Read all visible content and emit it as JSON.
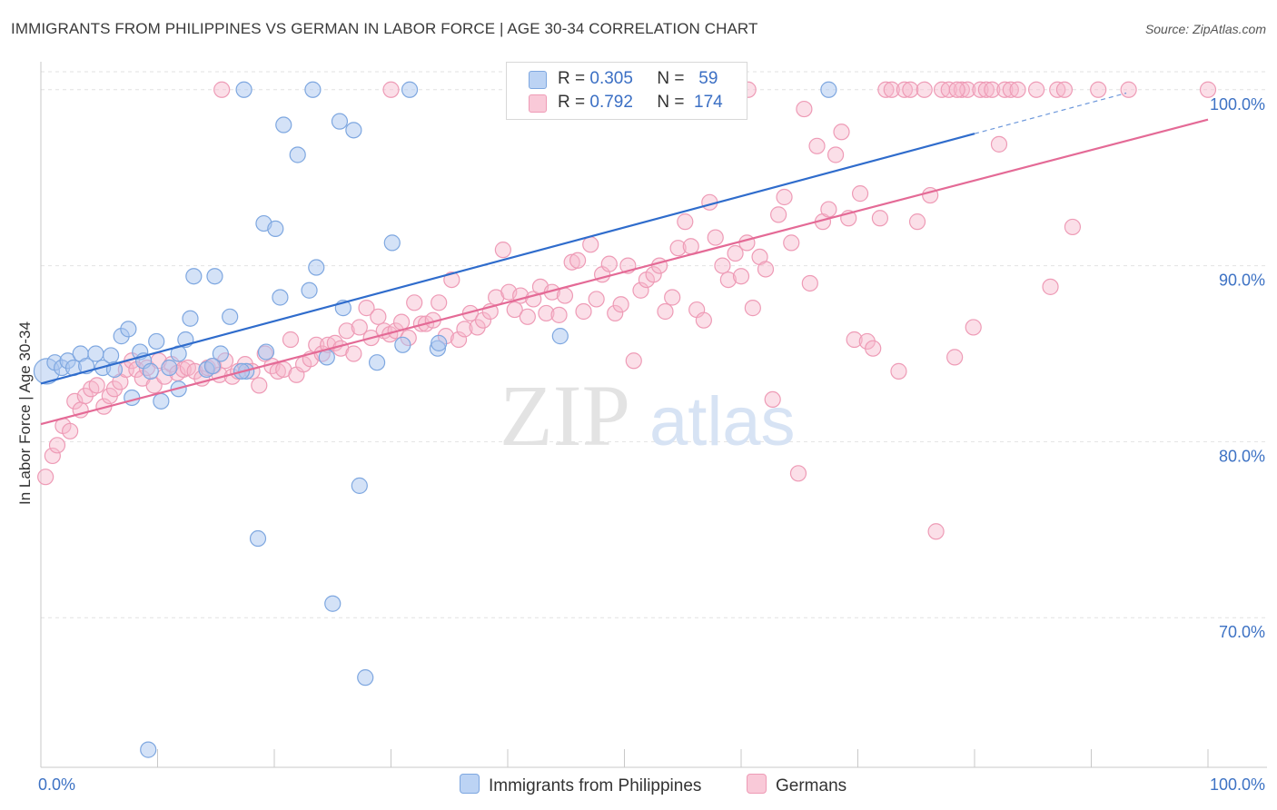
{
  "title": "IMMIGRANTS FROM PHILIPPINES VS GERMAN IN LABOR FORCE | AGE 30-34 CORRELATION CHART",
  "source": "Source: ZipAtlas.com",
  "watermark": {
    "zip": "ZIP",
    "atlas": "atlas"
  },
  "colors": {
    "blue_fill": "#a9c6f0",
    "blue_stroke": "#7ea7e0",
    "blue_line": "#2f6ccc",
    "pink_fill": "#f6b7cb",
    "pink_stroke": "#ee9bb6",
    "pink_line": "#e46a96",
    "axis_label": "#3d72c4",
    "grid": "#e2e2e2"
  },
  "legend": {
    "rows": [
      {
        "r_label": "R =",
        "r_value": "0.305",
        "n_label": "N =",
        "n_value": "59"
      },
      {
        "r_label": "R =",
        "r_value": "0.792",
        "n_label": "N =",
        "n_value": "174"
      }
    ]
  },
  "bottom_legend": [
    "Immigrants from Philippines",
    "Germans"
  ],
  "chart_data": {
    "type": "scatter",
    "xlabel": "",
    "ylabel": "In Labor Force | Age 30-34",
    "xlim": [
      0,
      100
    ],
    "ylim": [
      61.5,
      102
    ],
    "x_tick_labels": [
      {
        "value": 0,
        "label": "0.0%"
      },
      {
        "value": 100,
        "label": "100.0%"
      }
    ],
    "y_tick_labels": [
      {
        "value": 70,
        "label": "70.0%"
      },
      {
        "value": 80,
        "label": "80.0%"
      },
      {
        "value": 90,
        "label": "90.0%"
      },
      {
        "value": 100,
        "label": "100.0%"
      }
    ],
    "grid": true,
    "series": [
      {
        "name": "Immigrants from Philippines",
        "color": "#a9c6f0",
        "trend": {
          "x": [
            0,
            80
          ],
          "y": [
            83.3,
            97.5
          ],
          "dash_to": [
            93,
            100
          ]
        },
        "points": [
          [
            0.5,
            84.0
          ],
          [
            1.2,
            84.5
          ],
          [
            1.8,
            84.2
          ],
          [
            2.3,
            84.6
          ],
          [
            2.8,
            84.2
          ],
          [
            3.4,
            85.0
          ],
          [
            3.9,
            84.3
          ],
          [
            4.7,
            85.0
          ],
          [
            5.3,
            84.2
          ],
          [
            6.0,
            84.9
          ],
          [
            6.3,
            84.1
          ],
          [
            6.9,
            86.0
          ],
          [
            7.5,
            86.4
          ],
          [
            7.8,
            82.5
          ],
          [
            8.5,
            85.1
          ],
          [
            8.8,
            84.6
          ],
          [
            9.4,
            84.0
          ],
          [
            9.9,
            85.7
          ],
          [
            10.3,
            82.3
          ],
          [
            11.0,
            84.2
          ],
          [
            11.8,
            83.0
          ],
          [
            12.4,
            85.8
          ],
          [
            12.8,
            87.0
          ],
          [
            13.1,
            89.4
          ],
          [
            14.2,
            84.1
          ],
          [
            14.9,
            89.4
          ],
          [
            15.4,
            85.0
          ],
          [
            16.2,
            87.1
          ],
          [
            17.6,
            84.0
          ],
          [
            17.4,
            100.0
          ],
          [
            18.6,
            74.5
          ],
          [
            19.3,
            85.1
          ],
          [
            19.1,
            92.4
          ],
          [
            20.1,
            92.1
          ],
          [
            20.5,
            88.2
          ],
          [
            20.8,
            98.0
          ],
          [
            22.0,
            96.3
          ],
          [
            23.0,
            88.6
          ],
          [
            23.3,
            100.0
          ],
          [
            23.6,
            89.9
          ],
          [
            24.5,
            84.8
          ],
          [
            25.0,
            70.8
          ],
          [
            25.6,
            98.2
          ],
          [
            25.9,
            87.6
          ],
          [
            26.8,
            97.7
          ],
          [
            27.3,
            77.5
          ],
          [
            27.8,
            66.6
          ],
          [
            28.8,
            84.5
          ],
          [
            30.1,
            91.3
          ],
          [
            31.0,
            85.5
          ],
          [
            31.6,
            100.0
          ],
          [
            34.0,
            85.3
          ],
          [
            34.1,
            85.6
          ],
          [
            44.5,
            86.0
          ],
          [
            67.5,
            100.0
          ],
          [
            9.2,
            62.5
          ],
          [
            11.8,
            85.0
          ],
          [
            14.7,
            84.3
          ],
          [
            17.2,
            84.0
          ]
        ]
      },
      {
        "name": "Germans",
        "color": "#f6b7cb",
        "trend": {
          "x": [
            0,
            100
          ],
          "y": [
            81.0,
            98.3
          ]
        },
        "points": [
          [
            0.4,
            78.0
          ],
          [
            1.0,
            79.2
          ],
          [
            1.4,
            79.8
          ],
          [
            1.9,
            80.9
          ],
          [
            2.5,
            80.6
          ],
          [
            2.9,
            82.3
          ],
          [
            3.4,
            81.8
          ],
          [
            3.8,
            82.6
          ],
          [
            4.3,
            83.0
          ],
          [
            4.8,
            83.2
          ],
          [
            5.4,
            82.0
          ],
          [
            5.9,
            82.6
          ],
          [
            6.3,
            83.0
          ],
          [
            6.8,
            83.4
          ],
          [
            7.3,
            84.1
          ],
          [
            7.8,
            84.6
          ],
          [
            8.2,
            84.1
          ],
          [
            8.7,
            83.6
          ],
          [
            9.1,
            84.2
          ],
          [
            9.7,
            83.2
          ],
          [
            10.1,
            84.6
          ],
          [
            10.6,
            83.7
          ],
          [
            11.2,
            84.4
          ],
          [
            11.7,
            83.9
          ],
          [
            12.2,
            84.1
          ],
          [
            12.6,
            84.2
          ],
          [
            13.2,
            84.0
          ],
          [
            13.8,
            83.6
          ],
          [
            14.3,
            84.2
          ],
          [
            14.8,
            84.3
          ],
          [
            15.3,
            83.8
          ],
          [
            15.8,
            84.6
          ],
          [
            16.4,
            83.7
          ],
          [
            16.9,
            84.0
          ],
          [
            17.5,
            84.4
          ],
          [
            18.1,
            84.0
          ],
          [
            18.7,
            83.2
          ],
          [
            19.2,
            85.0
          ],
          [
            19.8,
            84.3
          ],
          [
            20.3,
            84.0
          ],
          [
            20.8,
            84.1
          ],
          [
            21.4,
            85.8
          ],
          [
            21.9,
            83.8
          ],
          [
            22.5,
            84.4
          ],
          [
            23.1,
            84.7
          ],
          [
            23.6,
            85.5
          ],
          [
            24.1,
            85.0
          ],
          [
            24.6,
            85.5
          ],
          [
            25.2,
            85.6
          ],
          [
            25.7,
            85.3
          ],
          [
            26.2,
            86.3
          ],
          [
            26.8,
            85.0
          ],
          [
            27.3,
            86.5
          ],
          [
            27.9,
            87.6
          ],
          [
            28.3,
            85.9
          ],
          [
            28.9,
            87.1
          ],
          [
            29.4,
            86.3
          ],
          [
            29.9,
            86.1
          ],
          [
            30.4,
            86.3
          ],
          [
            30.9,
            86.8
          ],
          [
            31.5,
            85.9
          ],
          [
            32.0,
            87.9
          ],
          [
            32.6,
            86.7
          ],
          [
            33.0,
            86.7
          ],
          [
            33.6,
            86.9
          ],
          [
            34.1,
            87.9
          ],
          [
            34.7,
            86.0
          ],
          [
            35.2,
            89.2
          ],
          [
            35.8,
            85.8
          ],
          [
            36.3,
            86.4
          ],
          [
            36.8,
            87.3
          ],
          [
            37.4,
            86.5
          ],
          [
            37.9,
            86.9
          ],
          [
            38.5,
            87.4
          ],
          [
            39.0,
            88.2
          ],
          [
            39.6,
            90.9
          ],
          [
            40.1,
            88.5
          ],
          [
            40.6,
            87.5
          ],
          [
            41.1,
            88.3
          ],
          [
            41.7,
            87.1
          ],
          [
            42.2,
            88.1
          ],
          [
            42.8,
            88.8
          ],
          [
            43.3,
            87.3
          ],
          [
            43.8,
            88.5
          ],
          [
            44.4,
            87.2
          ],
          [
            44.9,
            88.3
          ],
          [
            45.5,
            90.2
          ],
          [
            46.0,
            90.3
          ],
          [
            46.5,
            87.4
          ],
          [
            47.1,
            91.2
          ],
          [
            47.6,
            88.1
          ],
          [
            48.1,
            89.5
          ],
          [
            48.7,
            90.1
          ],
          [
            49.2,
            87.3
          ],
          [
            49.7,
            87.8
          ],
          [
            50.3,
            90.0
          ],
          [
            50.8,
            84.6
          ],
          [
            51.4,
            88.6
          ],
          [
            51.9,
            89.2
          ],
          [
            52.5,
            89.5
          ],
          [
            53.0,
            90.0
          ],
          [
            53.5,
            87.4
          ],
          [
            54.1,
            88.2
          ],
          [
            54.6,
            91.0
          ],
          [
            55.2,
            92.5
          ],
          [
            55.7,
            91.1
          ],
          [
            56.2,
            87.5
          ],
          [
            56.8,
            86.9
          ],
          [
            57.3,
            93.6
          ],
          [
            57.8,
            91.6
          ],
          [
            58.4,
            90.0
          ],
          [
            58.9,
            89.2
          ],
          [
            59.5,
            90.7
          ],
          [
            60.0,
            89.4
          ],
          [
            60.5,
            91.3
          ],
          [
            61.0,
            87.6
          ],
          [
            61.6,
            90.5
          ],
          [
            62.1,
            89.8
          ],
          [
            62.7,
            82.4
          ],
          [
            63.2,
            92.9
          ],
          [
            63.7,
            93.9
          ],
          [
            64.3,
            91.3
          ],
          [
            64.9,
            78.2
          ],
          [
            65.4,
            98.9
          ],
          [
            65.9,
            89.0
          ],
          [
            66.5,
            96.8
          ],
          [
            67.0,
            92.5
          ],
          [
            67.5,
            93.2
          ],
          [
            68.1,
            96.3
          ],
          [
            68.6,
            97.6
          ],
          [
            69.2,
            92.7
          ],
          [
            69.7,
            85.8
          ],
          [
            70.2,
            94.1
          ],
          [
            70.8,
            85.7
          ],
          [
            71.3,
            85.3
          ],
          [
            71.9,
            92.7
          ],
          [
            72.4,
            100.0
          ],
          [
            72.9,
            100.0
          ],
          [
            73.5,
            84.0
          ],
          [
            74.0,
            100.0
          ],
          [
            74.5,
            100.0
          ],
          [
            75.1,
            92.5
          ],
          [
            75.7,
            100.0
          ],
          [
            76.2,
            94.0
          ],
          [
            76.7,
            74.9
          ],
          [
            77.2,
            100.0
          ],
          [
            77.8,
            100.0
          ],
          [
            78.3,
            84.8
          ],
          [
            78.9,
            100.0
          ],
          [
            79.4,
            100.0
          ],
          [
            79.9,
            86.5
          ],
          [
            80.5,
            100.0
          ],
          [
            81.0,
            100.0
          ],
          [
            81.5,
            100.0
          ],
          [
            82.1,
            96.9
          ],
          [
            82.6,
            100.0
          ],
          [
            83.1,
            100.0
          ],
          [
            83.7,
            100.0
          ],
          [
            85.3,
            100.0
          ],
          [
            86.5,
            88.8
          ],
          [
            87.1,
            100.0
          ],
          [
            87.7,
            100.0
          ],
          [
            88.4,
            92.2
          ],
          [
            90.6,
            100.0
          ],
          [
            93.2,
            100.0
          ],
          [
            100.0,
            100.0
          ],
          [
            15.5,
            100.0
          ],
          [
            30.0,
            100.0
          ],
          [
            60.6,
            100.0
          ],
          [
            78.5,
            100.0
          ]
        ]
      }
    ]
  }
}
